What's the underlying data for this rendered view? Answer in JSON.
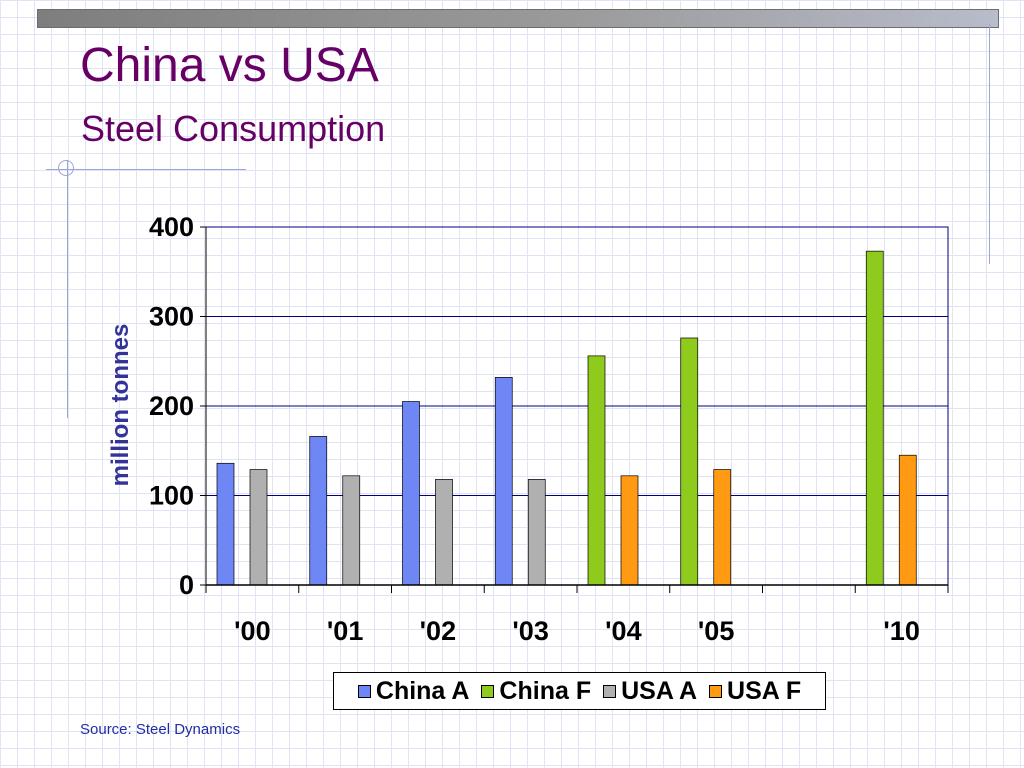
{
  "slide": {
    "title": "China vs USA",
    "subtitle": "Steel Consumption",
    "source": "Source: Steel Dynamics"
  },
  "chart_data": {
    "type": "bar",
    "categories": [
      "'00",
      "'01",
      "'02",
      "'03",
      "'04",
      "'05",
      "",
      "'10"
    ],
    "series": [
      {
        "name": "China A",
        "color": "#6f86f5",
        "values": [
          136,
          166,
          205,
          232,
          null,
          null,
          null,
          null
        ]
      },
      {
        "name": "China F",
        "color": "#8fcb1c",
        "values": [
          null,
          null,
          null,
          null,
          256,
          276,
          null,
          373
        ]
      },
      {
        "name": "USA A",
        "color": "#b0b0b0",
        "values": [
          129,
          122,
          118,
          118,
          null,
          null,
          null,
          null
        ]
      },
      {
        "name": "USA F",
        "color": "#ff9a12",
        "values": [
          null,
          null,
          null,
          null,
          122,
          129,
          null,
          145
        ]
      }
    ],
    "xlabel": "",
    "ylabel": "million tonnes",
    "ylim": [
      0,
      400
    ],
    "yticks": [
      0,
      100,
      200,
      300,
      400
    ],
    "grid": true,
    "legend": "bottom"
  }
}
